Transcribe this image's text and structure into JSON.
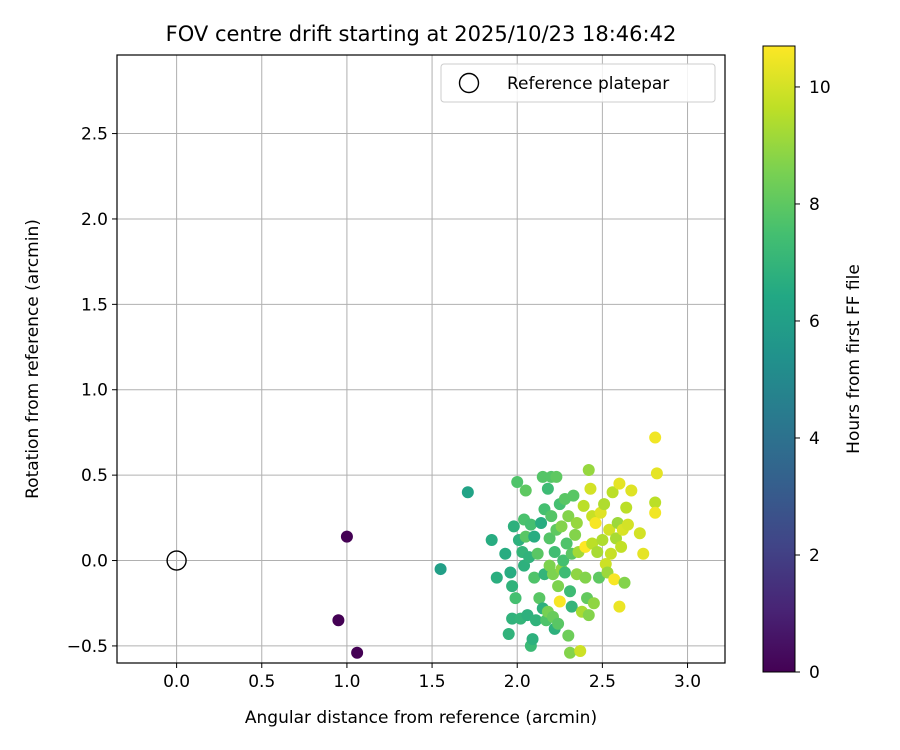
{
  "chart_data": {
    "type": "scatter",
    "title": "FOV centre drift starting at 2025/10/23 18:46:42",
    "xlabel": "Angular distance from reference (arcmin)",
    "ylabel": "Rotation from reference (arcmin)",
    "xlim": [
      -0.35,
      3.22
    ],
    "ylim": [
      -0.6,
      2.96
    ],
    "xticks": [
      0.0,
      0.5,
      1.0,
      1.5,
      2.0,
      2.5,
      3.0
    ],
    "xtick_labels": [
      "0.0",
      "0.5",
      "1.0",
      "1.5",
      "2.0",
      "2.5",
      "3.0"
    ],
    "yticks": [
      -0.5,
      0.0,
      0.5,
      1.0,
      1.5,
      2.0,
      2.5
    ],
    "ytick_labels": [
      "−0.5",
      "0.0",
      "0.5",
      "1.0",
      "1.5",
      "2.0",
      "2.5"
    ],
    "grid": true,
    "legend": {
      "position": "top-right",
      "entries": [
        "Reference platepar"
      ]
    },
    "reference": {
      "x": 0.0,
      "y": 0.0,
      "label": "Reference platepar"
    },
    "colorbar": {
      "label": "Hours from first FF file",
      "range": [
        0,
        10.7
      ],
      "ticks": [
        0,
        2,
        4,
        6,
        8,
        10
      ],
      "tick_labels": [
        "0",
        "2",
        "4",
        "6",
        "8",
        "10"
      ],
      "colormap": "viridis"
    },
    "points": [
      {
        "x": 1.0,
        "y": 0.14,
        "h": 0.0
      },
      {
        "x": 0.95,
        "y": -0.35,
        "h": 0.0
      },
      {
        "x": 1.06,
        "y": -0.54,
        "h": 0.0
      },
      {
        "x": 1.55,
        "y": -0.05,
        "h": 6.0
      },
      {
        "x": 1.71,
        "y": 0.4,
        "h": 6.2
      },
      {
        "x": 1.85,
        "y": 0.12,
        "h": 6.6
      },
      {
        "x": 1.88,
        "y": -0.1,
        "h": 6.7
      },
      {
        "x": 1.93,
        "y": 0.04,
        "h": 6.6
      },
      {
        "x": 1.95,
        "y": -0.43,
        "h": 6.9
      },
      {
        "x": 1.96,
        "y": -0.07,
        "h": 6.6
      },
      {
        "x": 1.97,
        "y": -0.15,
        "h": 6.9
      },
      {
        "x": 1.98,
        "y": 0.2,
        "h": 6.8
      },
      {
        "x": 1.97,
        "y": -0.34,
        "h": 6.9
      },
      {
        "x": 1.99,
        "y": -0.22,
        "h": 7.5
      },
      {
        "x": 2.0,
        "y": 0.46,
        "h": 7.7
      },
      {
        "x": 2.01,
        "y": 0.12,
        "h": 6.8
      },
      {
        "x": 2.02,
        "y": -0.34,
        "h": 7.0
      },
      {
        "x": 2.03,
        "y": 0.05,
        "h": 7.0
      },
      {
        "x": 2.04,
        "y": 0.24,
        "h": 7.6
      },
      {
        "x": 2.04,
        "y": -0.03,
        "h": 6.8
      },
      {
        "x": 2.05,
        "y": 0.41,
        "h": 8.0
      },
      {
        "x": 2.05,
        "y": 0.14,
        "h": 7.9
      },
      {
        "x": 2.06,
        "y": -0.32,
        "h": 6.8
      },
      {
        "x": 2.07,
        "y": 0.02,
        "h": 6.9
      },
      {
        "x": 2.08,
        "y": -0.5,
        "h": 7.2
      },
      {
        "x": 2.08,
        "y": 0.21,
        "h": 7.5
      },
      {
        "x": 2.09,
        "y": -0.46,
        "h": 6.8
      },
      {
        "x": 2.1,
        "y": 0.14,
        "h": 6.6
      },
      {
        "x": 2.1,
        "y": -0.1,
        "h": 7.7
      },
      {
        "x": 2.11,
        "y": -0.35,
        "h": 6.9
      },
      {
        "x": 2.12,
        "y": 0.04,
        "h": 7.9
      },
      {
        "x": 2.13,
        "y": -0.22,
        "h": 7.9
      },
      {
        "x": 2.14,
        "y": 0.22,
        "h": 6.6
      },
      {
        "x": 2.15,
        "y": 0.49,
        "h": 7.8
      },
      {
        "x": 2.15,
        "y": -0.28,
        "h": 6.8
      },
      {
        "x": 2.16,
        "y": 0.3,
        "h": 7.5
      },
      {
        "x": 2.16,
        "y": -0.08,
        "h": 7.0
      },
      {
        "x": 2.17,
        "y": -0.35,
        "h": 7.7
      },
      {
        "x": 2.18,
        "y": 0.42,
        "h": 7.3
      },
      {
        "x": 2.18,
        "y": -0.3,
        "h": 8.5
      },
      {
        "x": 2.19,
        "y": 0.13,
        "h": 7.8
      },
      {
        "x": 2.19,
        "y": -0.03,
        "h": 8.6
      },
      {
        "x": 2.2,
        "y": 0.49,
        "h": 7.8
      },
      {
        "x": 2.2,
        "y": 0.26,
        "h": 7.8
      },
      {
        "x": 2.21,
        "y": -0.08,
        "h": 8.6
      },
      {
        "x": 2.21,
        "y": -0.33,
        "h": 8.2
      },
      {
        "x": 2.22,
        "y": 0.05,
        "h": 7.4
      },
      {
        "x": 2.22,
        "y": -0.4,
        "h": 6.8
      },
      {
        "x": 2.23,
        "y": 0.49,
        "h": 8.0
      },
      {
        "x": 2.23,
        "y": 0.18,
        "h": 8.0
      },
      {
        "x": 2.24,
        "y": -0.15,
        "h": 8.6
      },
      {
        "x": 2.24,
        "y": -0.37,
        "h": 7.9
      },
      {
        "x": 2.25,
        "y": -0.24,
        "h": 10.6
      },
      {
        "x": 2.25,
        "y": 0.33,
        "h": 7.5
      },
      {
        "x": 2.26,
        "y": 0.2,
        "h": 8.7
      },
      {
        "x": 2.26,
        "y": -0.05,
        "h": 8.9
      },
      {
        "x": 2.27,
        "y": 0.0,
        "h": 7.5
      },
      {
        "x": 2.28,
        "y": 0.36,
        "h": 7.9
      },
      {
        "x": 2.28,
        "y": -0.07,
        "h": 7.3
      },
      {
        "x": 2.29,
        "y": 0.1,
        "h": 7.7
      },
      {
        "x": 2.3,
        "y": -0.44,
        "h": 8.3
      },
      {
        "x": 2.3,
        "y": 0.26,
        "h": 8.7
      },
      {
        "x": 2.31,
        "y": -0.54,
        "h": 8.7
      },
      {
        "x": 2.31,
        "y": -0.18,
        "h": 7.3
      },
      {
        "x": 2.32,
        "y": 0.04,
        "h": 7.9
      },
      {
        "x": 2.32,
        "y": -0.27,
        "h": 7.0
      },
      {
        "x": 2.33,
        "y": 0.38,
        "h": 7.9
      },
      {
        "x": 2.34,
        "y": 0.15,
        "h": 8.7
      },
      {
        "x": 2.35,
        "y": -0.08,
        "h": 8.9
      },
      {
        "x": 2.35,
        "y": 0.22,
        "h": 9.0
      },
      {
        "x": 2.36,
        "y": 0.05,
        "h": 9.2
      },
      {
        "x": 2.37,
        "y": -0.53,
        "h": 9.9
      },
      {
        "x": 2.38,
        "y": -0.3,
        "h": 9.3
      },
      {
        "x": 2.39,
        "y": 0.32,
        "h": 9.6
      },
      {
        "x": 2.4,
        "y": -0.1,
        "h": 8.7
      },
      {
        "x": 2.4,
        "y": 0.08,
        "h": 10.7
      },
      {
        "x": 2.41,
        "y": -0.22,
        "h": 8.1
      },
      {
        "x": 2.42,
        "y": 0.53,
        "h": 9.0
      },
      {
        "x": 2.42,
        "y": -0.32,
        "h": 8.7
      },
      {
        "x": 2.43,
        "y": 0.42,
        "h": 10.0
      },
      {
        "x": 2.44,
        "y": 0.26,
        "h": 9.8
      },
      {
        "x": 2.44,
        "y": 0.1,
        "h": 9.6
      },
      {
        "x": 2.45,
        "y": -0.25,
        "h": 8.9
      },
      {
        "x": 2.46,
        "y": 0.22,
        "h": 10.6
      },
      {
        "x": 2.47,
        "y": 0.05,
        "h": 9.3
      },
      {
        "x": 2.48,
        "y": -0.1,
        "h": 8.0
      },
      {
        "x": 2.49,
        "y": 0.28,
        "h": 10.2
      },
      {
        "x": 2.5,
        "y": 0.12,
        "h": 9.4
      },
      {
        "x": 2.51,
        "y": 0.33,
        "h": 9.4
      },
      {
        "x": 2.52,
        "y": -0.02,
        "h": 9.9
      },
      {
        "x": 2.53,
        "y": -0.07,
        "h": 9.1
      },
      {
        "x": 2.54,
        "y": 0.18,
        "h": 10.0
      },
      {
        "x": 2.55,
        "y": 0.04,
        "h": 9.8
      },
      {
        "x": 2.56,
        "y": 0.4,
        "h": 9.6
      },
      {
        "x": 2.57,
        "y": -0.11,
        "h": 10.6
      },
      {
        "x": 2.58,
        "y": 0.13,
        "h": 9.3
      },
      {
        "x": 2.59,
        "y": 0.22,
        "h": 9.1
      },
      {
        "x": 2.6,
        "y": 0.45,
        "h": 10.3
      },
      {
        "x": 2.6,
        "y": -0.27,
        "h": 10.4
      },
      {
        "x": 2.61,
        "y": 0.08,
        "h": 9.7
      },
      {
        "x": 2.62,
        "y": 0.18,
        "h": 10.1
      },
      {
        "x": 2.63,
        "y": -0.13,
        "h": 8.7
      },
      {
        "x": 2.64,
        "y": 0.31,
        "h": 9.6
      },
      {
        "x": 2.65,
        "y": 0.21,
        "h": 10.0
      },
      {
        "x": 2.67,
        "y": 0.41,
        "h": 10.2
      },
      {
        "x": 2.72,
        "y": 0.16,
        "h": 10.0
      },
      {
        "x": 2.74,
        "y": 0.04,
        "h": 10.3
      },
      {
        "x": 2.81,
        "y": 0.72,
        "h": 10.5
      },
      {
        "x": 2.82,
        "y": 0.51,
        "h": 10.3
      },
      {
        "x": 2.81,
        "y": 0.34,
        "h": 9.6
      },
      {
        "x": 2.81,
        "y": 0.28,
        "h": 10.5
      }
    ]
  }
}
